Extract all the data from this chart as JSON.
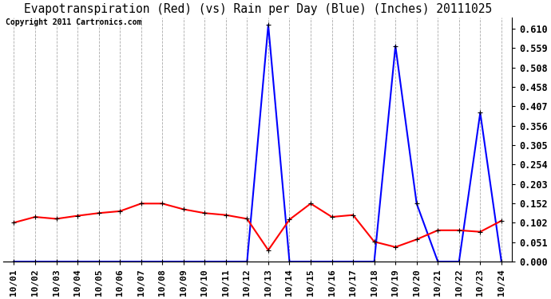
{
  "title": "Evapotranspiration (Red) (vs) Rain per Day (Blue) (Inches) 20111025",
  "copyright": "Copyright 2011 Cartronics.com",
  "dates": [
    "10/01",
    "10/02",
    "10/03",
    "10/04",
    "10/05",
    "10/06",
    "10/07",
    "10/08",
    "10/09",
    "10/10",
    "10/11",
    "10/12",
    "10/13",
    "10/14",
    "10/15",
    "10/16",
    "10/17",
    "10/18",
    "10/19",
    "10/20",
    "10/21",
    "10/22",
    "10/23",
    "10/24"
  ],
  "blue_rain": [
    0.0,
    0.0,
    0.0,
    0.0,
    0.0,
    0.0,
    0.0,
    0.0,
    0.0,
    0.0,
    0.0,
    0.0,
    0.62,
    0.0,
    0.0,
    0.0,
    0.0,
    0.0,
    0.565,
    0.152,
    0.0,
    0.0,
    0.39,
    0.0
  ],
  "red_et": [
    0.102,
    0.117,
    0.112,
    0.12,
    0.127,
    0.132,
    0.152,
    0.152,
    0.137,
    0.127,
    0.122,
    0.112,
    0.03,
    0.11,
    0.152,
    0.117,
    0.122,
    0.052,
    0.038,
    0.058,
    0.082,
    0.082,
    0.078,
    0.107
  ],
  "blue_color": "#0000ff",
  "red_color": "#ff0000",
  "bg_color": "#ffffff",
  "plot_bg_color": "#ffffff",
  "grid_color": "#aaaaaa",
  "y_ticks": [
    0.0,
    0.051,
    0.102,
    0.152,
    0.203,
    0.254,
    0.305,
    0.356,
    0.407,
    0.458,
    0.508,
    0.559,
    0.61
  ],
  "ylim": [
    0.0,
    0.64
  ],
  "title_fontsize": 10.5,
  "copyright_fontsize": 7,
  "tick_fontsize": 8,
  "ytick_fontsize": 8.5,
  "marker": "+",
  "marker_size": 5,
  "line_width": 1.5
}
